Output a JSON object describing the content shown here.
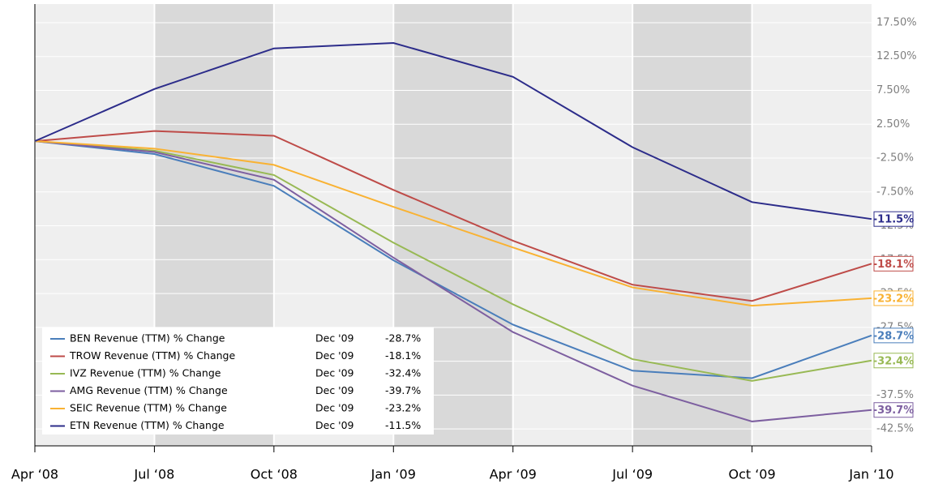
{
  "chart_data": {
    "type": "line",
    "categories": [
      "Apr ‘08",
      "Jul ‘08",
      "Oct ‘08",
      "Jan ‘09",
      "Apr ‘09",
      "Jul ‘09",
      "Oct ‘09",
      "Jan ‘10"
    ],
    "series": [
      {
        "name": "BEN Revenue (TTM) % Change",
        "color": "#4a7ebb",
        "last_date": "Dec '09",
        "values": [
          0,
          -1.9,
          -6.6,
          -17.6,
          -27.1,
          -33.9,
          -35.0,
          -28.7
        ],
        "value_labels": [
          null,
          null,
          null,
          null,
          null,
          null,
          null,
          "-28.7%"
        ]
      },
      {
        "name": "TROW Revenue (TTM) % Change",
        "color": "#be4b48",
        "last_date": "Dec '09",
        "values": [
          0,
          1.5,
          0.8,
          -7.2,
          -14.7,
          -21.2,
          -23.6,
          -18.1
        ],
        "value_labels": [
          null,
          null,
          null,
          null,
          null,
          null,
          null,
          "-18.1%"
        ]
      },
      {
        "name": "IVZ Revenue (TTM) % Change",
        "color": "#98b954",
        "last_date": "Dec '09",
        "values": [
          0,
          -1.4,
          -5.0,
          -15.0,
          -24.1,
          -32.2,
          -35.4,
          -32.4
        ],
        "value_labels": [
          null,
          null,
          null,
          null,
          null,
          null,
          null,
          "-32.4%"
        ]
      },
      {
        "name": "AMG Revenue (TTM) % Change",
        "color": "#7d5fa0",
        "last_date": "Dec '09",
        "values": [
          0,
          -1.6,
          -5.7,
          -17.2,
          -28.2,
          -36.1,
          -41.4,
          -39.7
        ],
        "value_labels": [
          null,
          null,
          null,
          null,
          null,
          null,
          null,
          "-39.7%"
        ]
      },
      {
        "name": "SEIC Revenue (TTM) % Change",
        "color": "#f9b233",
        "last_date": "Dec '09",
        "values": [
          0,
          -1.1,
          -3.5,
          -9.7,
          -15.7,
          -21.6,
          -24.3,
          -23.2
        ],
        "value_labels": [
          null,
          null,
          null,
          null,
          null,
          null,
          null,
          "-23.2%"
        ]
      },
      {
        "name": "ETN Revenue (TTM) % Change",
        "color": "#2c2c8a",
        "last_date": "Dec '09",
        "values": [
          0,
          7.7,
          13.7,
          14.5,
          9.5,
          -0.9,
          -9.0,
          -11.5
        ],
        "value_labels": [
          null,
          null,
          null,
          null,
          null,
          null,
          null,
          "-11.5%"
        ]
      }
    ],
    "ylim": [
      -45,
      20.25
    ],
    "yticks": [
      {
        "value": 17.5,
        "label": "17.50%"
      },
      {
        "value": 12.5,
        "label": "12.50%"
      },
      {
        "value": 7.5,
        "label": "7.50%"
      },
      {
        "value": 2.5,
        "label": "2.50%"
      },
      {
        "value": -2.5,
        "label": "-2.50%"
      },
      {
        "value": -7.5,
        "label": "-7.50%"
      },
      {
        "value": -12.5,
        "label": "-12.5%"
      },
      {
        "value": -17.5,
        "label": "-17.5%"
      },
      {
        "value": -22.5,
        "label": "-22.5%"
      },
      {
        "value": -27.5,
        "label": "-27.5%"
      },
      {
        "value": -32.5,
        "label": "-32.5%"
      },
      {
        "value": -37.5,
        "label": "-37.5%"
      },
      {
        "value": -42.5,
        "label": "-42.5%"
      }
    ],
    "y_axis_side": "right",
    "grid": true
  }
}
